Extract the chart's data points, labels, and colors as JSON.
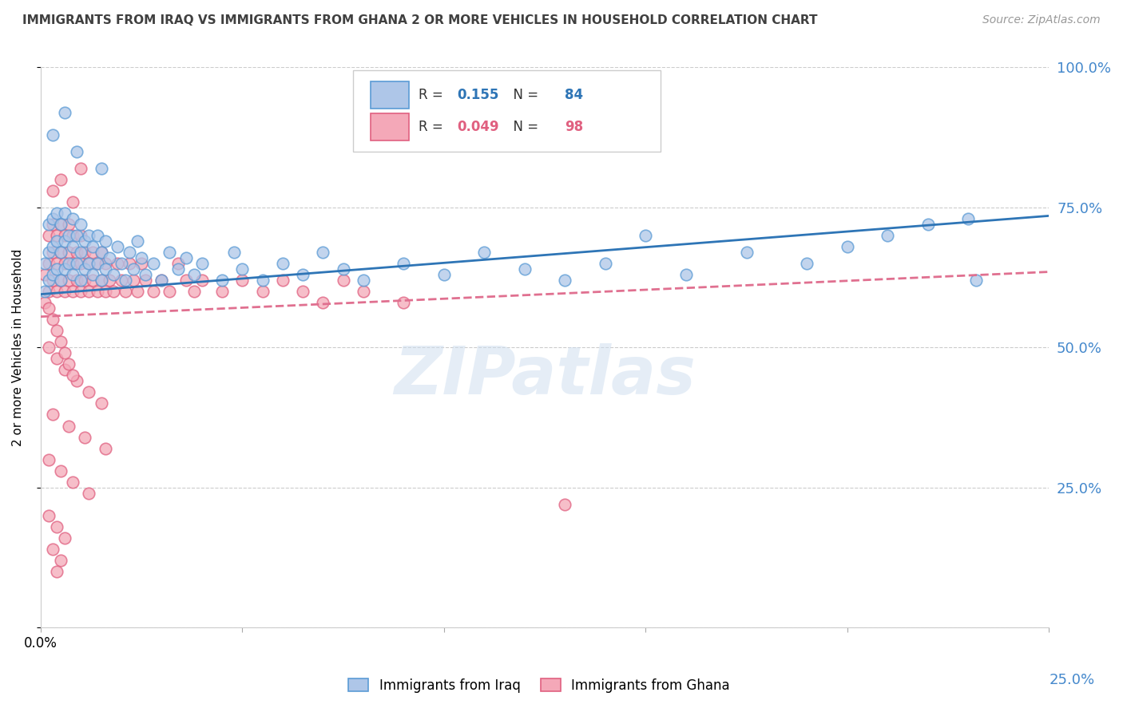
{
  "title": "IMMIGRANTS FROM IRAQ VS IMMIGRANTS FROM GHANA 2 OR MORE VEHICLES IN HOUSEHOLD CORRELATION CHART",
  "source": "Source: ZipAtlas.com",
  "ylabel": "2 or more Vehicles in Household",
  "xlim": [
    0.0,
    0.25
  ],
  "ylim": [
    0.0,
    1.0
  ],
  "xticks": [
    0.0,
    0.05,
    0.1,
    0.15,
    0.2,
    0.25
  ],
  "xticklabels": [
    "0.0%",
    "",
    "",
    "",
    "",
    ""
  ],
  "x_right_label": "25.0%",
  "yticks": [
    0.0,
    0.25,
    0.5,
    0.75,
    1.0
  ],
  "yticklabels_right": [
    "",
    "25.0%",
    "50.0%",
    "75.0%",
    "100.0%"
  ],
  "iraq_color": "#aec6e8",
  "iraq_edge_color": "#5b9bd5",
  "ghana_color": "#f4a8b8",
  "ghana_edge_color": "#e06080",
  "iraq_line_color": "#2e75b6",
  "ghana_line_color": "#e07090",
  "legend_iraq_label": "Immigrants from Iraq",
  "legend_ghana_label": "Immigrants from Ghana",
  "iraq_R": 0.155,
  "iraq_N": 84,
  "ghana_R": 0.049,
  "ghana_N": 98,
  "watermark": "ZIPatlas",
  "background_color": "#ffffff",
  "grid_color": "#cccccc",
  "axis_label_color": "#4488cc",
  "title_color": "#404040",
  "iraq_scatter_x": [
    0.001,
    0.001,
    0.002,
    0.002,
    0.002,
    0.003,
    0.003,
    0.003,
    0.004,
    0.004,
    0.004,
    0.005,
    0.005,
    0.005,
    0.006,
    0.006,
    0.006,
    0.007,
    0.007,
    0.008,
    0.008,
    0.008,
    0.009,
    0.009,
    0.01,
    0.01,
    0.01,
    0.011,
    0.011,
    0.012,
    0.012,
    0.013,
    0.013,
    0.014,
    0.014,
    0.015,
    0.015,
    0.016,
    0.016,
    0.017,
    0.018,
    0.019,
    0.02,
    0.021,
    0.022,
    0.023,
    0.024,
    0.025,
    0.026,
    0.028,
    0.03,
    0.032,
    0.034,
    0.036,
    0.038,
    0.04,
    0.045,
    0.048,
    0.05,
    0.055,
    0.06,
    0.065,
    0.07,
    0.075,
    0.08,
    0.09,
    0.1,
    0.11,
    0.12,
    0.13,
    0.14,
    0.15,
    0.16,
    0.175,
    0.19,
    0.2,
    0.21,
    0.22,
    0.23,
    0.232,
    0.003,
    0.006,
    0.009,
    0.015
  ],
  "iraq_scatter_y": [
    0.6,
    0.65,
    0.62,
    0.67,
    0.72,
    0.63,
    0.68,
    0.73,
    0.64,
    0.69,
    0.74,
    0.62,
    0.67,
    0.72,
    0.64,
    0.69,
    0.74,
    0.65,
    0.7,
    0.63,
    0.68,
    0.73,
    0.65,
    0.7,
    0.62,
    0.67,
    0.72,
    0.64,
    0.69,
    0.65,
    0.7,
    0.63,
    0.68,
    0.65,
    0.7,
    0.62,
    0.67,
    0.64,
    0.69,
    0.66,
    0.63,
    0.68,
    0.65,
    0.62,
    0.67,
    0.64,
    0.69,
    0.66,
    0.63,
    0.65,
    0.62,
    0.67,
    0.64,
    0.66,
    0.63,
    0.65,
    0.62,
    0.67,
    0.64,
    0.62,
    0.65,
    0.63,
    0.67,
    0.64,
    0.62,
    0.65,
    0.63,
    0.67,
    0.64,
    0.62,
    0.65,
    0.7,
    0.63,
    0.67,
    0.65,
    0.68,
    0.7,
    0.72,
    0.73,
    0.62,
    0.88,
    0.92,
    0.85,
    0.82
  ],
  "ghana_scatter_x": [
    0.001,
    0.001,
    0.002,
    0.002,
    0.002,
    0.003,
    0.003,
    0.003,
    0.004,
    0.004,
    0.004,
    0.005,
    0.005,
    0.005,
    0.006,
    0.006,
    0.006,
    0.007,
    0.007,
    0.007,
    0.008,
    0.008,
    0.008,
    0.009,
    0.009,
    0.01,
    0.01,
    0.01,
    0.011,
    0.011,
    0.012,
    0.012,
    0.013,
    0.013,
    0.014,
    0.014,
    0.015,
    0.015,
    0.016,
    0.016,
    0.017,
    0.018,
    0.019,
    0.02,
    0.021,
    0.022,
    0.023,
    0.024,
    0.025,
    0.026,
    0.028,
    0.03,
    0.032,
    0.034,
    0.036,
    0.038,
    0.04,
    0.045,
    0.05,
    0.055,
    0.06,
    0.065,
    0.07,
    0.075,
    0.08,
    0.09,
    0.003,
    0.005,
    0.008,
    0.01,
    0.002,
    0.004,
    0.006,
    0.009,
    0.012,
    0.015,
    0.003,
    0.007,
    0.011,
    0.016,
    0.002,
    0.005,
    0.008,
    0.012,
    0.002,
    0.004,
    0.006,
    0.003,
    0.005,
    0.004,
    0.13,
    0.002,
    0.003,
    0.004,
    0.005,
    0.006,
    0.007,
    0.008
  ],
  "ghana_scatter_y": [
    0.58,
    0.63,
    0.6,
    0.65,
    0.7,
    0.62,
    0.67,
    0.72,
    0.6,
    0.65,
    0.7,
    0.62,
    0.67,
    0.72,
    0.6,
    0.65,
    0.7,
    0.62,
    0.67,
    0.72,
    0.6,
    0.65,
    0.7,
    0.62,
    0.67,
    0.6,
    0.65,
    0.7,
    0.62,
    0.67,
    0.6,
    0.65,
    0.62,
    0.67,
    0.6,
    0.65,
    0.62,
    0.67,
    0.6,
    0.65,
    0.62,
    0.6,
    0.65,
    0.62,
    0.6,
    0.65,
    0.62,
    0.6,
    0.65,
    0.62,
    0.6,
    0.62,
    0.6,
    0.65,
    0.62,
    0.6,
    0.62,
    0.6,
    0.62,
    0.6,
    0.62,
    0.6,
    0.58,
    0.62,
    0.6,
    0.58,
    0.78,
    0.8,
    0.76,
    0.82,
    0.5,
    0.48,
    0.46,
    0.44,
    0.42,
    0.4,
    0.38,
    0.36,
    0.34,
    0.32,
    0.3,
    0.28,
    0.26,
    0.24,
    0.2,
    0.18,
    0.16,
    0.14,
    0.12,
    0.1,
    0.22,
    0.57,
    0.55,
    0.53,
    0.51,
    0.49,
    0.47,
    0.45
  ]
}
